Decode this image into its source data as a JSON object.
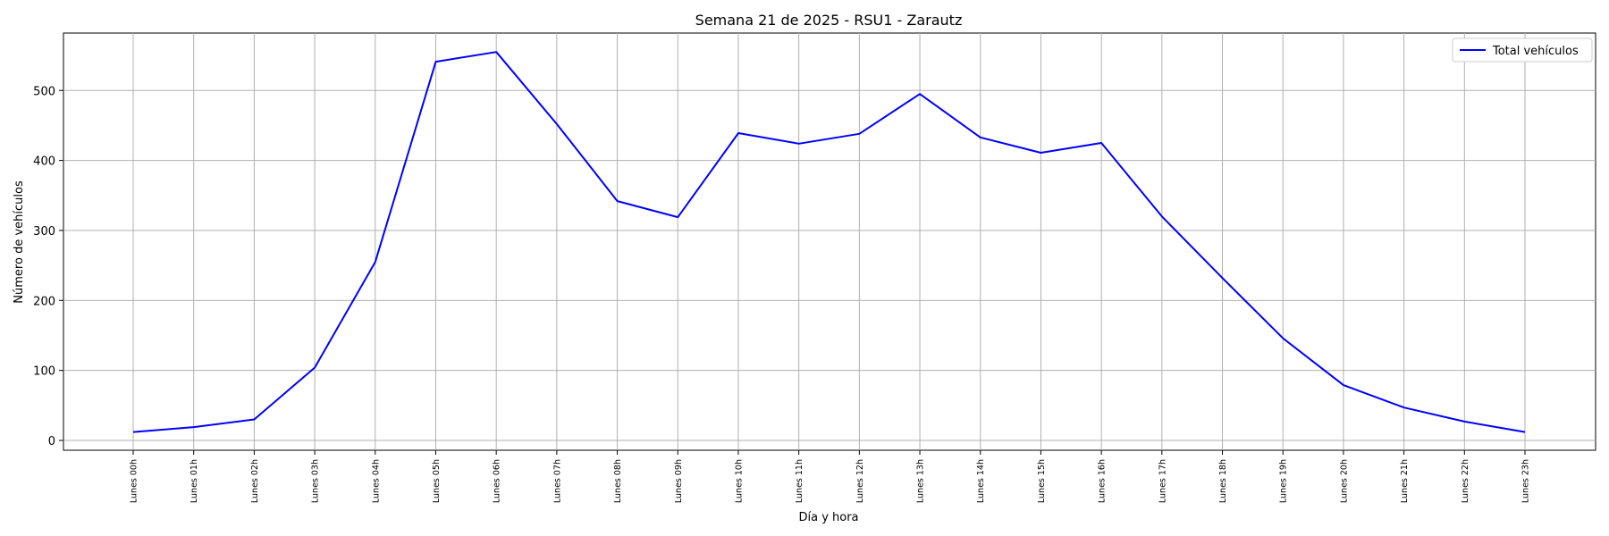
{
  "chart_data": {
    "type": "line",
    "title": "Semana 21 de 2025 - RSU1 - Zarautz",
    "xlabel": "Día y hora",
    "ylabel": "Número de vehículos",
    "categories": [
      "Lunes 00h",
      "Lunes 01h",
      "Lunes 02h",
      "Lunes 03h",
      "Lunes 04h",
      "Lunes 05h",
      "Lunes 06h",
      "Lunes 07h",
      "Lunes 08h",
      "Lunes 09h",
      "Lunes 10h",
      "Lunes 11h",
      "Lunes 12h",
      "Lunes 13h",
      "Lunes 14h",
      "Lunes 15h",
      "Lunes 16h",
      "Lunes 17h",
      "Lunes 18h",
      "Lunes 19h",
      "Lunes 20h",
      "Lunes 21h",
      "Lunes 22h",
      "Lunes 23h"
    ],
    "series": [
      {
        "name": "Total vehículos",
        "color": "#0000ff",
        "values": [
          12,
          19,
          30,
          104,
          255,
          541,
          555,
          452,
          342,
          319,
          439,
          424,
          438,
          495,
          433,
          411,
          425,
          320,
          232,
          146,
          79,
          47,
          27,
          12
        ]
      }
    ],
    "yticks": [
      0,
      100,
      200,
      300,
      400,
      500
    ],
    "ylim": [
      -14,
      582
    ],
    "grid": true,
    "legend_position": "top-right"
  }
}
